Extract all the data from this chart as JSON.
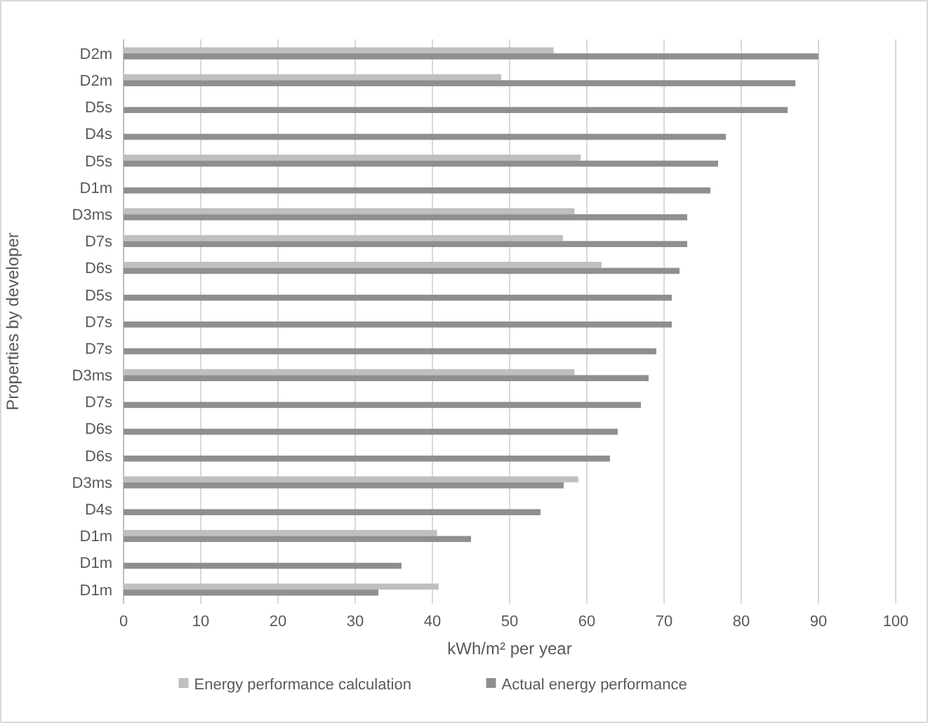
{
  "chart_data": {
    "type": "bar",
    "orientation": "horizontal",
    "xlabel": "kWh/m² per year",
    "ylabel": "Properties by developer",
    "categories": [
      "D2m",
      "D2m",
      "D5s",
      "D4s",
      "D5s",
      "D1m",
      "D3ms",
      "D7s",
      "D6s",
      "D5s",
      "D7s",
      "D7s",
      "D3ms",
      "D7s",
      "D6s",
      "D6s",
      "D3ms",
      "D4s",
      "D1m",
      "D1m",
      "D1m"
    ],
    "series": [
      {
        "name": "Energy performance calculation",
        "color": "#bfbfbf",
        "values": [
          55.7,
          48.9,
          null,
          null,
          59.2,
          null,
          58.4,
          56.9,
          61.9,
          null,
          null,
          null,
          58.4,
          null,
          null,
          null,
          58.9,
          null,
          40.6,
          null,
          40.8
        ]
      },
      {
        "name": "Actual energy performance",
        "color": "#8f8f8f",
        "values": [
          90,
          87,
          86,
          78,
          77,
          76,
          73,
          73,
          72,
          71,
          71,
          69,
          68,
          67,
          64,
          63,
          57,
          54,
          45,
          36,
          33
        ]
      }
    ],
    "xlim": [
      0,
      100
    ],
    "xticks": [
      0,
      10,
      20,
      30,
      40,
      50,
      60,
      70,
      80,
      90,
      100
    ],
    "grid": "x",
    "legend": "bottom"
  }
}
